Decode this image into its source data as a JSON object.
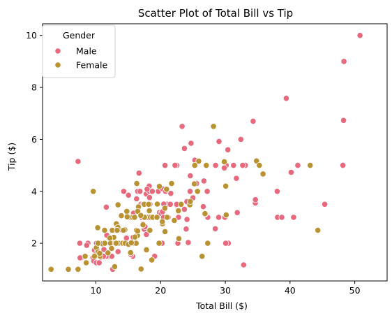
{
  "chart_data": {
    "type": "scatter",
    "title": "Scatter Plot of Total Bill vs Tip",
    "xlabel": "Total Bill ($)",
    "ylabel": "Tip ($)",
    "xlim": [
      1.76,
      55.0
    ],
    "ylim": [
      0.55,
      10.45
    ],
    "xticks": [
      10,
      20,
      30,
      40,
      50
    ],
    "yticks": [
      2,
      4,
      6,
      8,
      10
    ],
    "grid": false,
    "legend": {
      "title": "Gender",
      "placement": "top-left"
    },
    "series": [
      {
        "name": "Male",
        "color": "#e8687e",
        "points": [
          [
            50.81,
            10.0
          ],
          [
            48.33,
            9.0
          ],
          [
            39.42,
            7.58
          ],
          [
            48.27,
            6.73
          ],
          [
            34.3,
            6.7
          ],
          [
            23.33,
            6.5
          ],
          [
            32.4,
            6.0
          ],
          [
            29.03,
            5.92
          ],
          [
            24.71,
            5.85
          ],
          [
            23.68,
            5.65
          ],
          [
            30.4,
            5.6
          ],
          [
            7.25,
            5.15
          ],
          [
            25.29,
            5.2
          ],
          [
            28.5,
            5.0
          ],
          [
            31.27,
            5.0
          ],
          [
            20.69,
            5.0
          ],
          [
            22.5,
            5.0
          ],
          [
            30.14,
            5.0
          ],
          [
            41.19,
            5.0
          ],
          [
            48.17,
            5.0
          ],
          [
            33.1,
            5.0
          ],
          [
            24.59,
            4.6
          ],
          [
            25.56,
            4.3
          ],
          [
            40.17,
            4.73
          ],
          [
            32.68,
            5.0
          ],
          [
            29.85,
            4.9
          ],
          [
            21.7,
            4.3
          ],
          [
            26.7,
            4.4
          ],
          [
            18.24,
            4.2
          ],
          [
            19.65,
            4.0
          ],
          [
            20.27,
            4.1
          ],
          [
            16.45,
            4.0
          ],
          [
            17.78,
            3.9
          ],
          [
            15.04,
            3.85
          ],
          [
            20.76,
            4.0
          ],
          [
            38.01,
            4.0
          ],
          [
            16.66,
            4.7
          ],
          [
            19.82,
            3.18
          ],
          [
            22.76,
            3.0
          ],
          [
            18.35,
            3.5
          ],
          [
            24.55,
            4.0
          ],
          [
            23.1,
            3.5
          ],
          [
            21.01,
            3.5
          ],
          [
            34.63,
            3.55
          ],
          [
            34.65,
            3.68
          ],
          [
            25.71,
            4.0
          ],
          [
            45.35,
            3.5
          ],
          [
            20.49,
            3.51
          ],
          [
            19.49,
            3.51
          ],
          [
            31.85,
            3.18
          ],
          [
            11.61,
            3.39
          ],
          [
            24.06,
            3.6
          ],
          [
            17.46,
            2.54
          ],
          [
            13.94,
            3.06
          ],
          [
            27.2,
            4.0
          ],
          [
            22.23,
            5.0
          ],
          [
            32.83,
            1.17
          ],
          [
            38.07,
            3.0
          ],
          [
            38.73,
            3.0
          ],
          [
            40.55,
            3.0
          ],
          [
            30.46,
            2.0
          ],
          [
            28.97,
            3.0
          ],
          [
            27.28,
            3.0
          ],
          [
            29.93,
            3.0
          ],
          [
            16.97,
            3.5
          ],
          [
            12.74,
            2.01
          ],
          [
            12.03,
            1.5
          ],
          [
            19.44,
            3.0
          ],
          [
            22.67,
            2.0
          ],
          [
            17.07,
            3.0
          ],
          [
            26.41,
            1.5
          ],
          [
            12.46,
            1.5
          ],
          [
            16.29,
            3.71
          ],
          [
            10.34,
            1.66
          ],
          [
            21.01,
            4.08
          ],
          [
            23.68,
            3.31
          ],
          [
            9.55,
            1.45
          ],
          [
            12.69,
            2.0
          ],
          [
            13.42,
            1.68
          ],
          [
            15.69,
            1.5
          ],
          [
            11.24,
            1.76
          ],
          [
            24.08,
            2.92
          ],
          [
            22.42,
            3.48
          ],
          [
            15.48,
            2.02
          ],
          [
            17.81,
            2.34
          ],
          [
            14.48,
            2.0
          ],
          [
            13.28,
            2.72
          ],
          [
            13.0,
            2.0
          ],
          [
            12.54,
            2.5
          ],
          [
            9.78,
            1.73
          ],
          [
            9.68,
            1.32
          ],
          [
            10.07,
            1.25
          ],
          [
            15.42,
            1.57
          ],
          [
            16.93,
            3.07
          ],
          [
            13.81,
            2.0
          ],
          [
            18.28,
            4.0
          ],
          [
            15.81,
            3.16
          ],
          [
            15.38,
            3.0
          ],
          [
            14.73,
            2.2
          ],
          [
            10.33,
            2.0
          ],
          [
            20.65,
            3.35
          ],
          [
            17.92,
            4.08
          ],
          [
            22.49,
            3.5
          ],
          [
            12.16,
            2.2
          ],
          [
            13.39,
            2.61
          ],
          [
            14.26,
            2.5
          ],
          [
            28.44,
            2.56
          ],
          [
            10.65,
            1.5
          ],
          [
            14.31,
            4.0
          ],
          [
            8.77,
            2.0
          ],
          [
            17.29,
            2.71
          ],
          [
            10.51,
            1.25
          ],
          [
            13.37,
            2.0
          ],
          [
            18.29,
            3.76
          ],
          [
            11.69,
            2.31
          ],
          [
            12.26,
            2.0
          ],
          [
            10.63,
            2.0
          ],
          [
            19.77,
            2.0
          ],
          [
            7.51,
            2.0
          ],
          [
            11.87,
            1.63
          ],
          [
            8.51,
            1.25
          ],
          [
            16.04,
            2.24
          ],
          [
            12.9,
            1.1
          ],
          [
            11.38,
            2.0
          ],
          [
            13.51,
            2.0
          ],
          [
            15.77,
            2.23
          ],
          [
            16.0,
            2.0
          ],
          [
            21.5,
            3.5
          ],
          [
            18.15,
            3.5
          ],
          [
            20.23,
            2.01
          ],
          [
            14.15,
            2.0
          ],
          [
            10.09,
            2.0
          ],
          [
            17.31,
            3.5
          ],
          [
            20.92,
            4.08
          ],
          [
            19.08,
            1.5
          ],
          [
            12.6,
            1.0
          ],
          [
            22.82,
            2.18
          ],
          [
            20.08,
            3.15
          ],
          [
            15.95,
            2.0
          ],
          [
            25.0,
            3.75
          ],
          [
            23.95,
            2.55
          ],
          [
            20.29,
            3.21
          ],
          [
            26.59,
            3.41
          ],
          [
            13.03,
            2.0
          ],
          [
            18.78,
            3.0
          ],
          [
            30.06,
            2.0
          ],
          [
            11.59,
            1.5
          ],
          [
            9.94,
            1.56
          ],
          [
            8.58,
            1.92
          ],
          [
            7.74,
            1.44
          ],
          [
            18.71,
            4.0
          ],
          [
            17.26,
            2.74
          ],
          [
            14.07,
            2.5
          ],
          [
            10.77,
            1.47
          ],
          [
            24.27,
            2.03
          ],
          [
            16.47,
            3.23
          ],
          [
            12.76,
            2.23
          ],
          [
            11.02,
            1.98
          ],
          [
            17.59,
            2.64
          ],
          [
            16.82,
            4.0
          ],
          [
            21.16,
            3.0
          ],
          [
            18.04,
            3.0
          ],
          [
            12.43,
            1.8
          ],
          [
            14.83,
            3.02
          ],
          [
            17.47,
            3.5
          ],
          [
            16.31,
            2.0
          ],
          [
            15.53,
            3.0
          ],
          [
            9.6,
            4.0
          ],
          [
            7.56,
            1.44
          ],
          [
            10.27,
            1.71
          ],
          [
            12.48,
            2.52
          ],
          [
            14.52,
            2.0
          ],
          [
            11.17,
            1.5
          ],
          [
            20.23,
            2.0
          ],
          [
            31.71,
            4.5
          ],
          [
            39.42,
            7.58
          ],
          [
            26.88,
            3.12
          ],
          [
            20.45,
            3.0
          ],
          [
            15.06,
            3.0
          ],
          [
            21.58,
            3.92
          ]
        ]
      },
      {
        "name": "Female",
        "color": "#b99232",
        "points": [
          [
            3.07,
            1.0
          ],
          [
            5.75,
            1.0
          ],
          [
            7.25,
            1.0
          ],
          [
            8.35,
            1.5
          ],
          [
            8.51,
            1.25
          ],
          [
            9.6,
            4.0
          ],
          [
            10.07,
            1.83
          ],
          [
            10.29,
            2.6
          ],
          [
            10.33,
            1.67
          ],
          [
            10.65,
            1.5
          ],
          [
            11.35,
            2.5
          ],
          [
            11.87,
            1.63
          ],
          [
            12.26,
            2.0
          ],
          [
            12.43,
            1.8
          ],
          [
            12.54,
            2.5
          ],
          [
            12.9,
            1.1
          ],
          [
            13.0,
            2.0
          ],
          [
            13.16,
            2.75
          ],
          [
            13.27,
            2.5
          ],
          [
            13.39,
            2.61
          ],
          [
            13.42,
            3.48
          ],
          [
            13.51,
            2.0
          ],
          [
            13.94,
            3.06
          ],
          [
            14.15,
            2.0
          ],
          [
            14.52,
            2.0
          ],
          [
            14.78,
            3.23
          ],
          [
            15.25,
            3.0
          ],
          [
            15.36,
            1.64
          ],
          [
            15.38,
            3.0
          ],
          [
            15.69,
            3.0
          ],
          [
            16.21,
            2.0
          ],
          [
            16.27,
            2.5
          ],
          [
            16.32,
            4.3
          ],
          [
            16.43,
            2.3
          ],
          [
            16.58,
            3.4
          ],
          [
            16.99,
            1.01
          ],
          [
            17.46,
            3.0
          ],
          [
            17.51,
            3.0
          ],
          [
            17.82,
            1.75
          ],
          [
            18.26,
            3.25
          ],
          [
            18.43,
            3.0
          ],
          [
            18.64,
            1.36
          ],
          [
            18.78,
            3.0
          ],
          [
            19.81,
            4.19
          ],
          [
            20.29,
            2.75
          ],
          [
            20.92,
            4.08
          ],
          [
            20.69,
            2.45
          ],
          [
            21.01,
            3.0
          ],
          [
            22.12,
            2.88
          ],
          [
            22.75,
            3.25
          ],
          [
            24.52,
            3.48
          ],
          [
            25.21,
            4.29
          ],
          [
            25.28,
            5.0
          ],
          [
            25.89,
            5.16
          ],
          [
            26.86,
            3.14
          ],
          [
            27.05,
            5.0
          ],
          [
            28.17,
            6.5
          ],
          [
            29.85,
            5.14
          ],
          [
            30.14,
            3.09
          ],
          [
            34.83,
            5.17
          ],
          [
            35.26,
            5.0
          ],
          [
            35.83,
            4.67
          ],
          [
            43.11,
            5.0
          ],
          [
            44.3,
            2.5
          ],
          [
            22.82,
            2.18
          ],
          [
            15.04,
            1.96
          ],
          [
            14.83,
            3.02
          ],
          [
            13.13,
            2.0
          ],
          [
            17.29,
            2.71
          ],
          [
            16.04,
            2.24
          ],
          [
            11.02,
            1.98
          ],
          [
            19.44,
            3.0
          ],
          [
            26.41,
            1.5
          ],
          [
            16.47,
            3.23
          ],
          [
            27.28,
            2.0
          ],
          [
            18.35,
            2.5
          ],
          [
            17.47,
            3.5
          ],
          [
            20.65,
            3.35
          ],
          [
            12.76,
            2.23
          ],
          [
            10.34,
            2.0
          ],
          [
            9.78,
            1.5
          ],
          [
            10.59,
            1.61
          ],
          [
            18.15,
            3.5
          ],
          [
            16.45,
            2.47
          ],
          [
            15.98,
            3.0
          ],
          [
            13.28,
            2.5
          ],
          [
            20.27,
            2.83
          ],
          [
            30.06,
            4.2
          ],
          [
            19.49,
            3.51
          ],
          [
            14.48,
            2.52
          ],
          [
            23.17,
            3.5
          ],
          [
            24.59,
            3.61
          ],
          [
            19.77,
            2.0
          ],
          [
            16.93,
            3.07
          ],
          [
            21.7,
            4.3
          ],
          [
            25.71,
            4.0
          ],
          [
            11.38,
            2.0
          ],
          [
            12.16,
            2.2
          ],
          [
            14.26,
            2.5
          ],
          [
            15.48,
            2.02
          ]
        ]
      }
    ]
  }
}
